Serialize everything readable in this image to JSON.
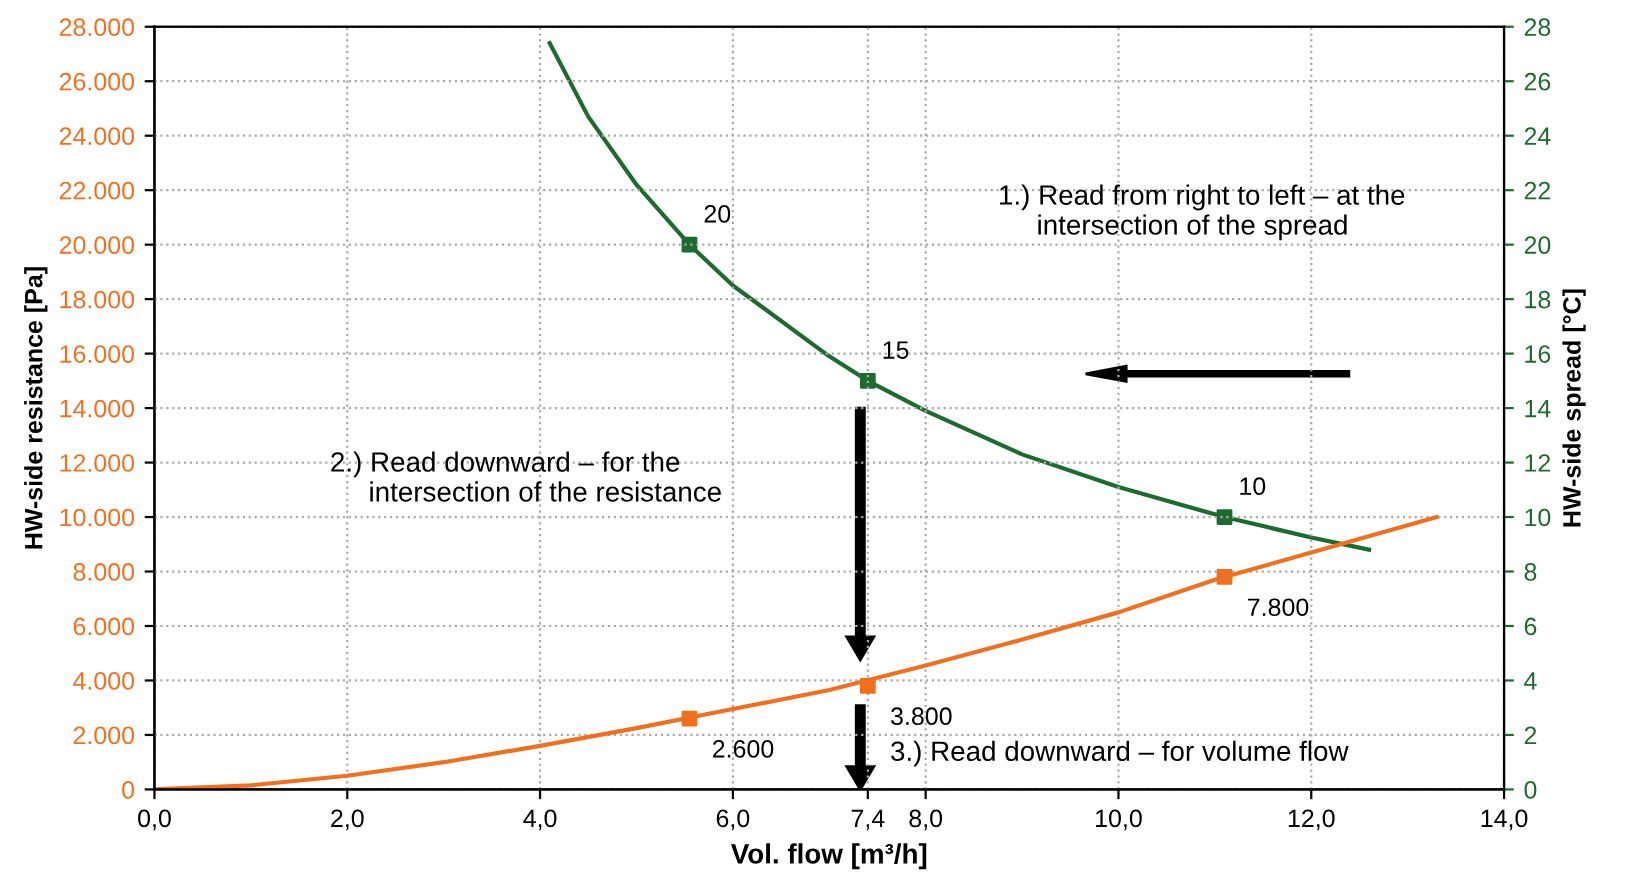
{
  "chart_data": {
    "type": "line",
    "xlabel": "Vol. flow [m³/h]",
    "ylabel": "HW-side resistance [Pa]",
    "y2label": "HW-side spread [°C]",
    "xlim": [
      0,
      14
    ],
    "xticks": [
      {
        "value": 0,
        "label": "0,0"
      },
      {
        "value": 2,
        "label": "2,0"
      },
      {
        "value": 4,
        "label": "4,0"
      },
      {
        "value": 6,
        "label": "6,0"
      },
      {
        "value": 7.4,
        "label": "7,4"
      },
      {
        "value": 8,
        "label": "8,0"
      },
      {
        "value": 10,
        "label": "10,0"
      },
      {
        "value": 12,
        "label": "12,0"
      },
      {
        "value": 14,
        "label": "14,0"
      }
    ],
    "ylim": [
      0,
      28000
    ],
    "yticks": [
      {
        "value": 0,
        "label": "0"
      },
      {
        "value": 2000,
        "label": "2.000"
      },
      {
        "value": 4000,
        "label": "4.000"
      },
      {
        "value": 6000,
        "label": "6.000"
      },
      {
        "value": 8000,
        "label": "8.000"
      },
      {
        "value": 10000,
        "label": "10.000"
      },
      {
        "value": 12000,
        "label": "12.000"
      },
      {
        "value": 14000,
        "label": "14.000"
      },
      {
        "value": 16000,
        "label": "16.000"
      },
      {
        "value": 18000,
        "label": "18.000"
      },
      {
        "value": 20000,
        "label": "20.000"
      },
      {
        "value": 22000,
        "label": "22.000"
      },
      {
        "value": 24000,
        "label": "24.000"
      },
      {
        "value": 26000,
        "label": "26.000"
      },
      {
        "value": 28000,
        "label": "28.000"
      }
    ],
    "y2lim": [
      0,
      28
    ],
    "y2ticks": [
      0,
      2,
      4,
      6,
      8,
      10,
      12,
      14,
      16,
      18,
      20,
      22,
      24,
      26,
      28
    ],
    "grid": true,
    "series": [
      {
        "color": "#f07020",
        "x": [
          0,
          1,
          2,
          3,
          4,
          5,
          6,
          7,
          8,
          9,
          10,
          11,
          12,
          13.3
        ],
        "values": [
          0,
          150,
          500,
          1000,
          1600,
          2250,
          2950,
          3650,
          4550,
          5500,
          6500,
          7700,
          8700,
          10000
        ]
      },
      {
        "type": "scatter",
        "color": "#f07020",
        "marker": "square",
        "x": [
          5.55,
          7.4,
          11.1
        ],
        "values": [
          2600,
          3800,
          7800
        ],
        "value_labels": [
          "2.600",
          "3.800",
          "7.800"
        ]
      },
      {
        "axis": "y2",
        "color": "#1e6b30",
        "x": [
          4.1,
          4.5,
          5,
          5.55,
          6,
          7,
          7.4,
          8,
          9,
          10,
          11.1,
          12,
          12.6
        ],
        "values": [
          27.4,
          24.7,
          22.2,
          20,
          18.5,
          15.9,
          15,
          13.9,
          12.3,
          11.1,
          10,
          9.25,
          8.8
        ]
      },
      {
        "type": "scatter",
        "axis": "y2",
        "color": "#1e6b30",
        "marker": "square",
        "x": [
          5.55,
          7.4,
          11.1
        ],
        "values": [
          20,
          15,
          10
        ],
        "value_labels": [
          "20",
          "15",
          "10"
        ]
      }
    ],
    "annotations": [
      "1.) Read from right to left – at the\n     intersection of the spread",
      "2.) Read downward – for the\n     intersection of the resistance",
      "3.) Read downward – for volume flow"
    ]
  }
}
